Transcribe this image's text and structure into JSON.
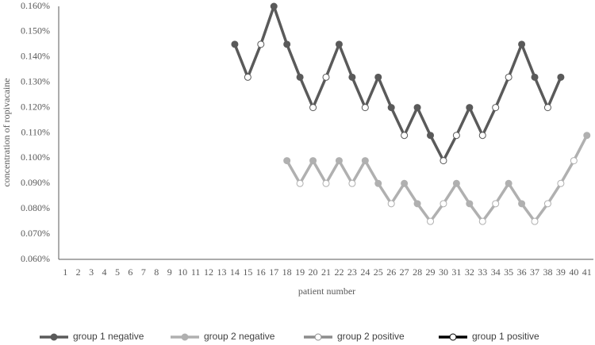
{
  "chart_data": {
    "type": "line",
    "x_label": "patient number",
    "y_label": "concentration of ropivacaine",
    "categories": [
      "1",
      "2",
      "3",
      "4",
      "5",
      "6",
      "7",
      "8",
      "9",
      "10",
      "11",
      "12",
      "13",
      "14",
      "15",
      "16",
      "17",
      "18",
      "19",
      "20",
      "21",
      "22",
      "23",
      "24",
      "25",
      "26",
      "27",
      "28",
      "29",
      "30",
      "31",
      "32",
      "33",
      "34",
      "35",
      "36",
      "37",
      "38",
      "39",
      "40",
      "41"
    ],
    "ylim": [
      0.06,
      0.16
    ],
    "yticks": [
      {
        "value": 0.06,
        "label": "0.060%"
      },
      {
        "value": 0.07,
        "label": "0.070%"
      },
      {
        "value": 0.08,
        "label": "0.080%"
      },
      {
        "value": 0.09,
        "label": "0.090%"
      },
      {
        "value": 0.1,
        "label": "0.100%"
      },
      {
        "value": 0.11,
        "label": "0.110%"
      },
      {
        "value": 0.12,
        "label": "0.120%"
      },
      {
        "value": 0.13,
        "label": "0.130%"
      },
      {
        "value": 0.14,
        "label": "0.140%"
      },
      {
        "value": 0.15,
        "label": "0.150%"
      },
      {
        "value": 0.16,
        "label": "0.160%"
      }
    ],
    "grid": false,
    "connect": [
      [
        0,
        3
      ],
      [
        1,
        2
      ]
    ],
    "series": [
      {
        "name": "group 1 negative",
        "color": "#5a5a5a",
        "marker": "filled",
        "values": [
          null,
          null,
          null,
          null,
          null,
          null,
          null,
          null,
          null,
          null,
          null,
          null,
          null,
          0.145,
          null,
          null,
          0.16,
          0.145,
          0.132,
          null,
          null,
          0.145,
          0.132,
          null,
          0.132,
          0.12,
          null,
          0.12,
          0.109,
          null,
          null,
          0.12,
          null,
          null,
          null,
          0.145,
          0.132,
          null,
          0.132,
          null,
          null
        ]
      },
      {
        "name": "group 2 negative",
        "color": "#b0b0b0",
        "marker": "filled",
        "values": [
          null,
          null,
          null,
          null,
          null,
          null,
          null,
          null,
          null,
          null,
          null,
          null,
          null,
          null,
          null,
          null,
          null,
          0.099,
          null,
          0.099,
          null,
          0.099,
          null,
          0.099,
          0.09,
          null,
          0.09,
          0.082,
          null,
          null,
          0.09,
          0.082,
          null,
          null,
          0.09,
          0.082,
          null,
          null,
          null,
          null,
          0.109
        ]
      },
      {
        "name": "group 2 positive",
        "color": "#8c8c8c",
        "marker": "open",
        "values": [
          null,
          null,
          null,
          null,
          null,
          null,
          null,
          null,
          null,
          null,
          null,
          null,
          null,
          null,
          null,
          null,
          null,
          null,
          0.09,
          null,
          0.09,
          null,
          0.09,
          null,
          null,
          0.082,
          null,
          null,
          0.075,
          0.082,
          null,
          null,
          0.075,
          0.082,
          null,
          null,
          0.075,
          0.082,
          0.09,
          0.099,
          null
        ]
      },
      {
        "name": "group 1 positive",
        "color": "#000000",
        "marker": "open",
        "values": [
          null,
          null,
          null,
          null,
          null,
          null,
          null,
          null,
          null,
          null,
          null,
          null,
          null,
          null,
          0.132,
          0.145,
          null,
          null,
          null,
          0.12,
          0.132,
          null,
          null,
          0.12,
          null,
          null,
          0.109,
          null,
          null,
          0.099,
          0.109,
          null,
          0.109,
          0.12,
          0.132,
          null,
          null,
          0.12,
          null,
          null,
          null
        ]
      }
    ]
  }
}
